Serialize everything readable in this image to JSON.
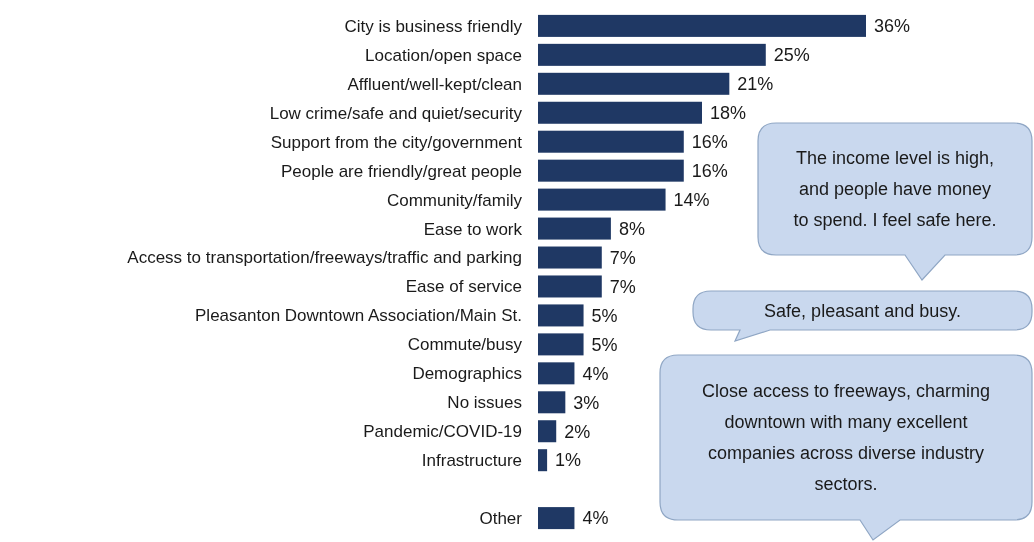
{
  "chart_data": {
    "type": "bar",
    "orientation": "horizontal",
    "value_labels": [
      "36%",
      "25%",
      "21%",
      "18%",
      "16%",
      "16%",
      "14%",
      "8%",
      "7%",
      "7%",
      "5%",
      "5%",
      "4%",
      "3%",
      "2%",
      "1%",
      null,
      "4%"
    ],
    "categories": [
      "City is business friendly",
      "Location/open space",
      "Affluent/well-kept/clean",
      "Low crime/safe and quiet/security",
      "Support from the city/government",
      "People are friendly/great people",
      "Community/family",
      "Ease to work",
      "Access to transportation/freeways/traffic and parking",
      "Ease of service",
      "Pleasanton Downtown Association/Main St.",
      "Commute/busy",
      "Demographics",
      "No issues",
      "Pandemic/COVID-19",
      "Infrastructure",
      null,
      "Other"
    ],
    "values": [
      36,
      25,
      21,
      18,
      16,
      16,
      14,
      8,
      7,
      7,
      5,
      5,
      4,
      3,
      2,
      1,
      null,
      4
    ],
    "color": "#1f3864",
    "annotations": [
      "The income level is high, and people have money to spend. I feel safe here.",
      "Safe, pleasant and busy.",
      "Close access to freeways, charming downtown with many excellent companies across diverse industry sectors."
    ]
  }
}
